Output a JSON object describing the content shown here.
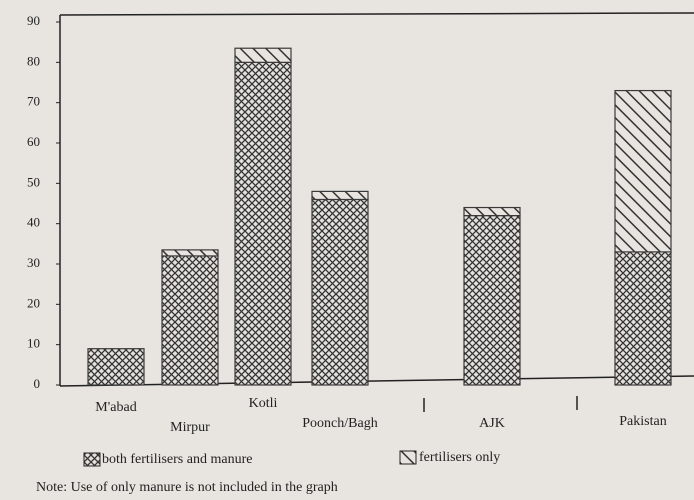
{
  "chart_data": {
    "type": "stacked_bar",
    "categories": [
      "M'abad",
      "Mirpur",
      "Kotli",
      "Poonch/Bagh",
      "AJK",
      "Pakistan"
    ],
    "series": [
      {
        "name": "both fertilisers and manure",
        "color": "#3a3a3a",
        "values": [
          9,
          32,
          80,
          46,
          42,
          33
        ]
      },
      {
        "name": "fertilisers only",
        "color": "#3a3a3a",
        "values": [
          0,
          1.5,
          3.5,
          2,
          2,
          40
        ]
      }
    ],
    "ylim": [
      0,
      90
    ],
    "yticks": [
      0,
      10,
      20,
      30,
      40,
      50,
      60,
      70,
      80,
      90
    ],
    "note": "Note: Use of only manure is not included in the graph"
  }
}
